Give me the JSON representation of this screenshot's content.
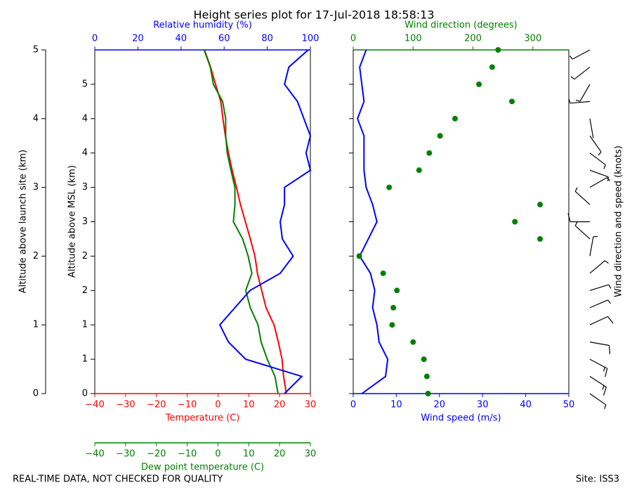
{
  "title": "Height series plot for 17-Jul-2018 18:58:13",
  "footer_left": "REAL-TIME DATA, NOT CHECKED FOR QUALITY",
  "footer_right": "Site: ISS3",
  "chart_data": [
    {
      "type": "line",
      "ylabel": "Altitude above launch site (km)",
      "ylim": [
        0,
        5
      ],
      "yticks": [
        0,
        1,
        2,
        3,
        4,
        5
      ],
      "y2label": "Altitude above MSL (km)",
      "y2lim": [
        0.4,
        5.4
      ],
      "y2ticks": [
        {
          "value": 0.4,
          "label": "0"
        },
        {
          "value": 0.9,
          "label": "1"
        },
        {
          "value": 1.4,
          "label": "1"
        },
        {
          "value": 1.9,
          "label": "2"
        },
        {
          "value": 2.4,
          "label": "2"
        },
        {
          "value": 2.9,
          "label": "3"
        },
        {
          "value": 3.4,
          "label": "3"
        },
        {
          "value": 3.9,
          "label": "4"
        },
        {
          "value": 4.4,
          "label": "4"
        },
        {
          "value": 4.9,
          "label": "5"
        }
      ],
      "y": [
        0,
        0.25,
        0.5,
        0.75,
        1.0,
        1.25,
        1.5,
        1.75,
        2.0,
        2.25,
        2.5,
        2.75,
        3.0,
        3.25,
        3.5,
        3.75,
        4.0,
        4.25,
        4.5,
        4.75,
        5.0
      ],
      "axes": [
        {
          "label": "Temperature (C)",
          "position": "bottom",
          "color": "#ff0000",
          "lim": [
            -40,
            30
          ],
          "ticks": [
            {
              "value": -40,
              "label": "−40"
            },
            {
              "value": -30,
              "label": "−30"
            },
            {
              "value": -20,
              "label": "−20"
            },
            {
              "value": -10,
              "label": "−10"
            },
            0,
            10,
            20,
            30
          ]
        },
        {
          "label": "Dew point temperature (C)",
          "position": "bottom-outer",
          "color": "#008000",
          "lim": [
            -40,
            30
          ],
          "ticks": [
            {
              "value": -40,
              "label": "−40"
            },
            {
              "value": -30,
              "label": "−30"
            },
            {
              "value": -20,
              "label": "−20"
            },
            {
              "value": -10,
              "label": "−10"
            },
            0,
            10,
            20,
            30
          ]
        },
        {
          "label": "Relative humidity (%)",
          "position": "top",
          "color": "#0000ff",
          "lim": [
            0,
            100
          ],
          "ticks": [
            0,
            20,
            40,
            60,
            80,
            100
          ]
        }
      ],
      "series": [
        {
          "color": "#ff0000",
          "xaxis": 0,
          "x": [
            22.2,
            21.3,
            20.8,
            19.6,
            18.2,
            15.6,
            14.2,
            12.8,
            12.0,
            10.5,
            8.9,
            7.3,
            6.0,
            4.6,
            3.4,
            2.4,
            1.6,
            0.9,
            -0.8,
            -2.4,
            -4.4
          ]
        },
        {
          "color": "#008000",
          "xaxis": 1,
          "x": [
            19.5,
            18.5,
            16.0,
            14.0,
            13.0,
            10.5,
            9.0,
            11.0,
            9.8,
            8.0,
            5.0,
            5.5,
            5.5,
            4.2,
            3.0,
            2.5,
            2.5,
            1.5,
            -1.5,
            -2.5,
            -4.5
          ]
        },
        {
          "color": "#0000ff",
          "xaxis": 2,
          "x": [
            88,
            96,
            70,
            62,
            58,
            65,
            72,
            86,
            92,
            87,
            86,
            88,
            88,
            100,
            98,
            100,
            97,
            94,
            88,
            90,
            99
          ]
        }
      ]
    },
    {
      "type": "line",
      "y": [
        0,
        0.25,
        0.5,
        0.75,
        1.0,
        1.25,
        1.5,
        1.75,
        2.0,
        2.25,
        2.5,
        2.75,
        3.0,
        3.25,
        3.5,
        3.75,
        4.0,
        4.25,
        4.5,
        4.75,
        5.0
      ],
      "ylim": [
        0,
        5
      ],
      "barbs_label": "Wind direction and speed (knots)",
      "axes": [
        {
          "label": "Wind speed (m/s)",
          "position": "bottom",
          "color": "#0000ff",
          "lim": [
            0,
            50
          ],
          "ticks": [
            0,
            10,
            20,
            30,
            40,
            50
          ]
        },
        {
          "label": "Wind direction (degrees)",
          "position": "top",
          "color": "#008000",
          "lim": [
            0,
            360
          ],
          "ticks": [
            0,
            100,
            200,
            300
          ]
        }
      ],
      "series": [
        {
          "color": "#0000ff",
          "xaxis": 0,
          "marker": "line",
          "x": [
            2,
            7.5,
            8,
            6,
            5.5,
            4.5,
            5,
            4,
            1.5,
            3.5,
            5.5,
            4.5,
            3,
            2.5,
            2.5,
            2.5,
            1,
            2.5,
            2,
            1.5,
            3
          ]
        },
        {
          "color": "#008000",
          "xaxis": 1,
          "marker": "dots",
          "x": [
            125,
            123,
            118,
            100,
            65,
            67,
            73,
            50,
            10,
            312,
            270,
            312,
            60,
            110,
            127,
            145,
            170,
            265,
            210,
            232,
            242
          ]
        }
      ]
    }
  ]
}
